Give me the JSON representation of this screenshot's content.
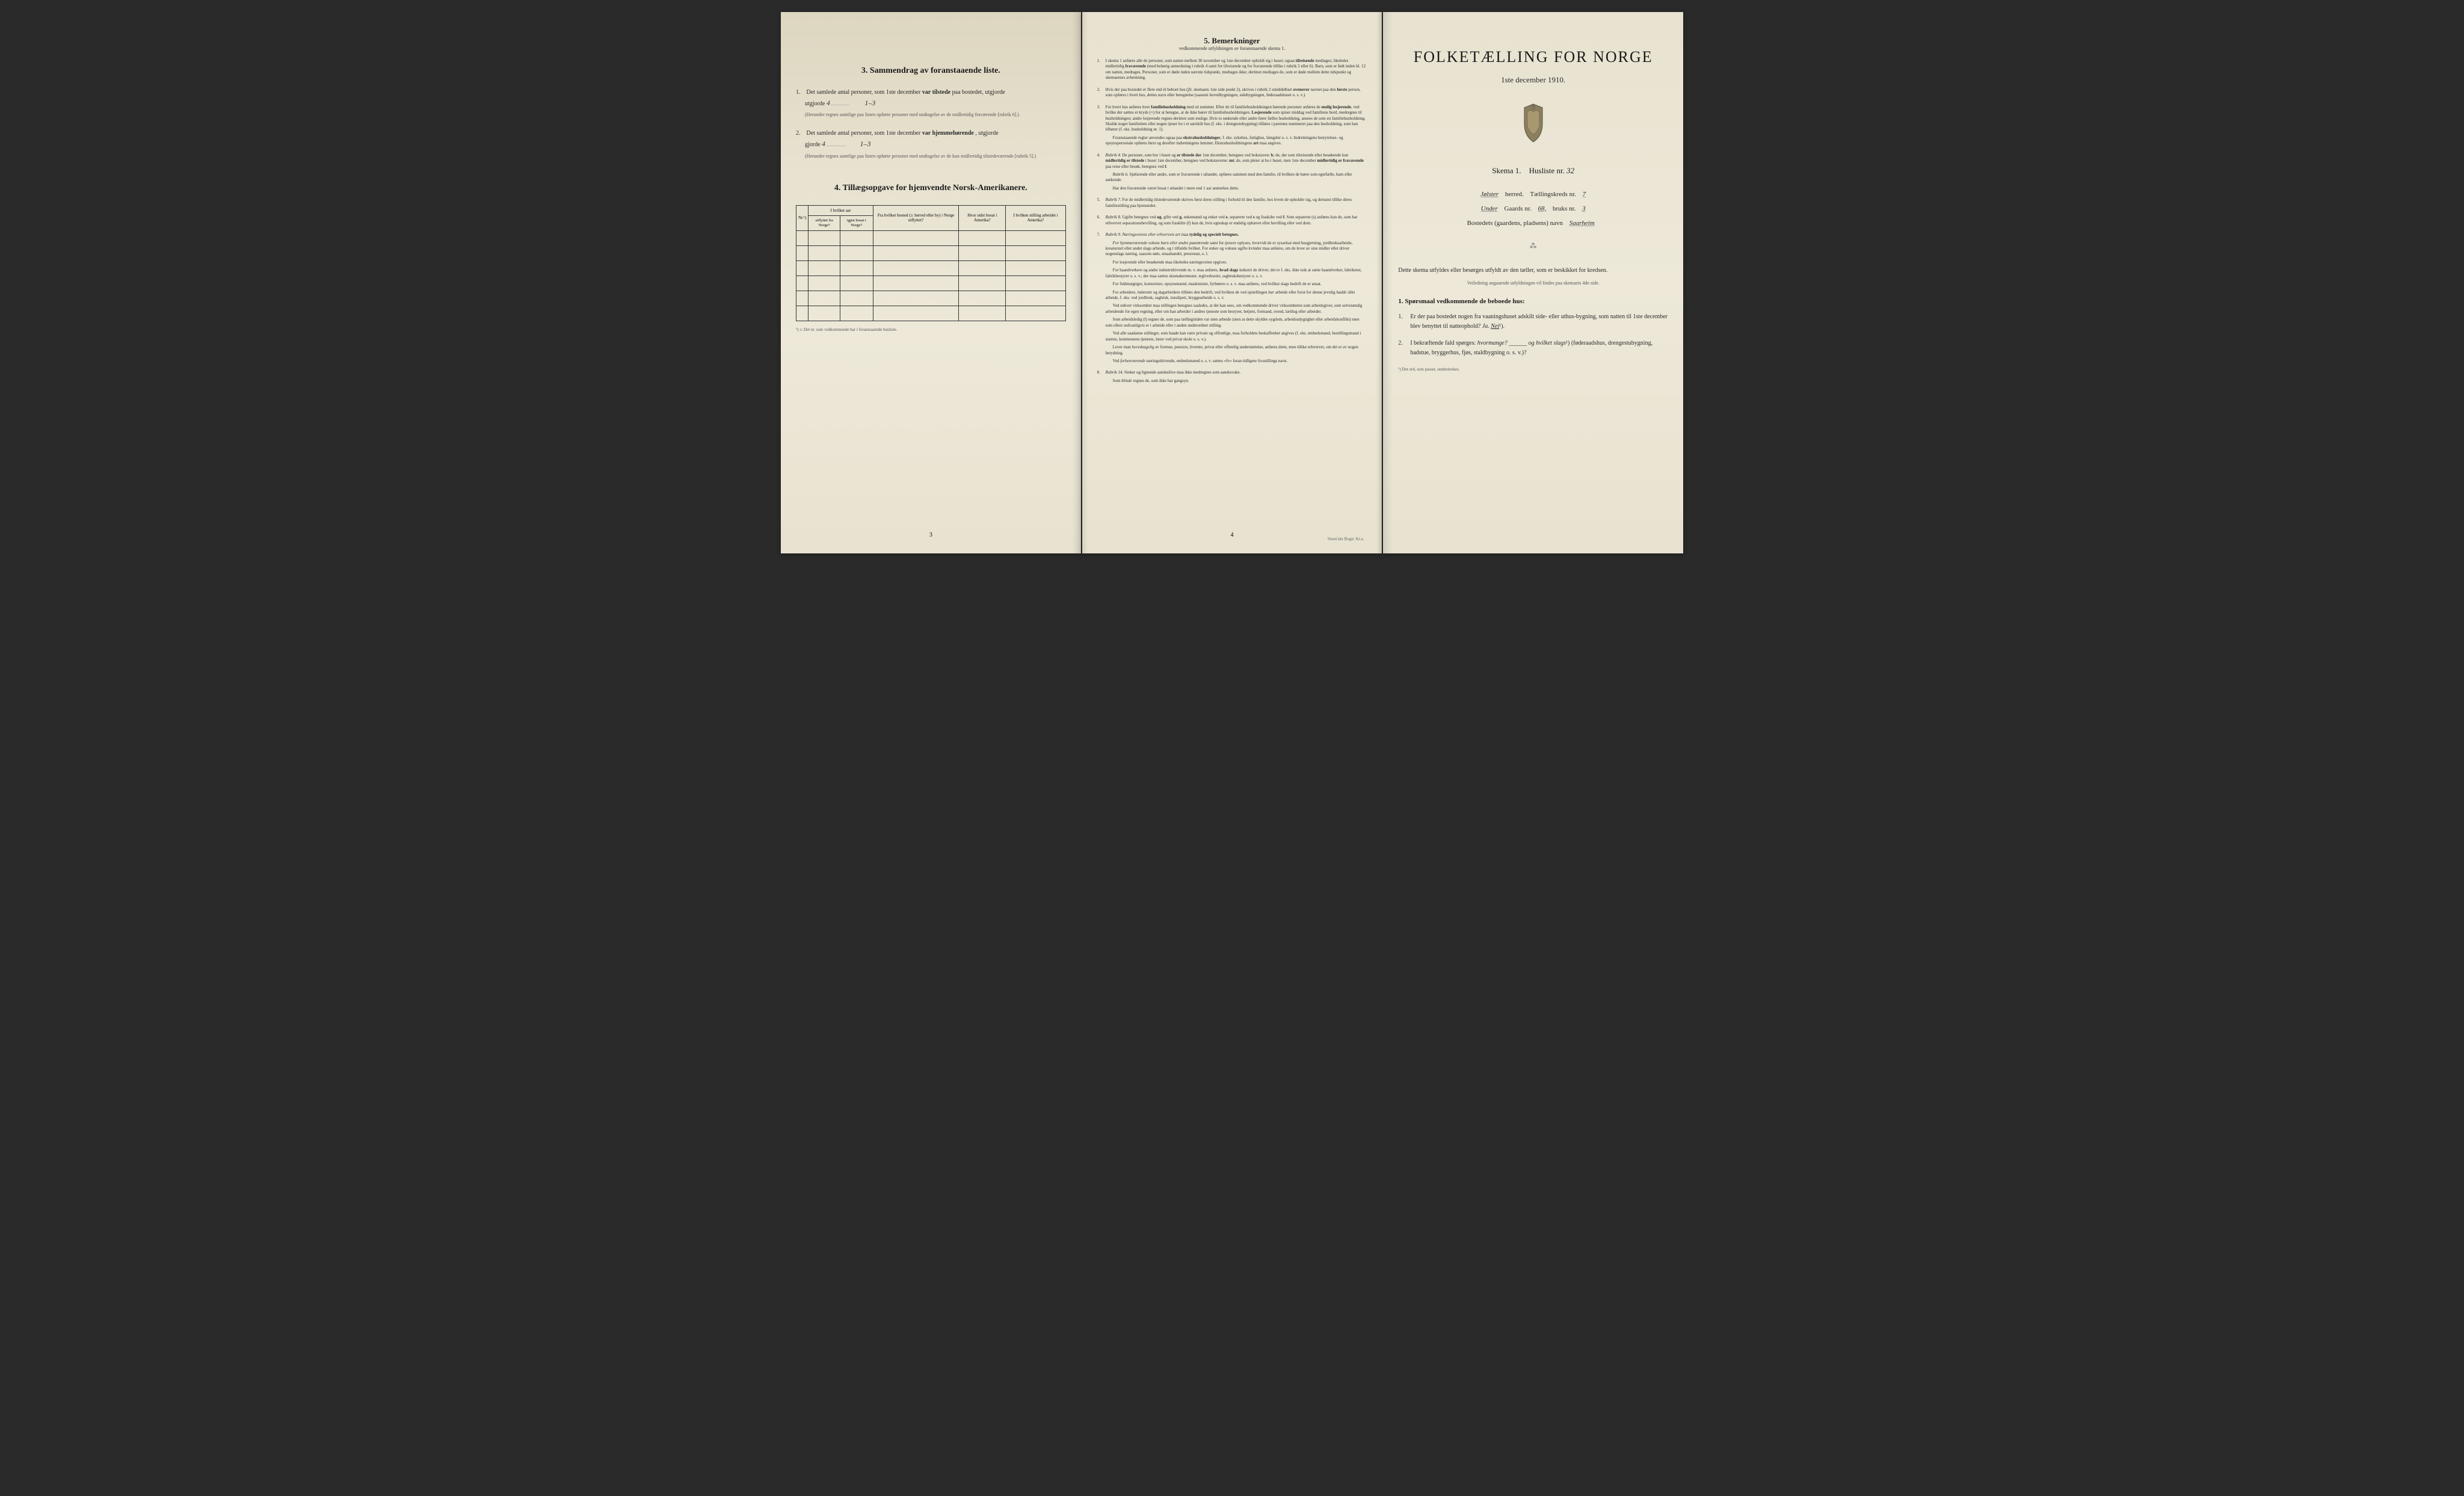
{
  "panel_left": {
    "section3": {
      "heading": "3.   Sammendrag av foranstaaende liste.",
      "item1": {
        "num": "1.",
        "text_before": "Det samlede antal personer, som 1ste december ",
        "bold1": "var tilstede",
        "text_mid": " paa bostedet, utgjorde ",
        "value": "4",
        "handwritten": "1–3",
        "fine_print": "(Herunder regnes samtlige paa listen opførte personer med undtagelse av de midlertidig fraværende [rubrik 6].)"
      },
      "item2": {
        "num": "2.",
        "text_before": "Det samlede antal personer, som 1ste december ",
        "bold1": "var hjemmehørende",
        "text_mid": ", utgjorde ",
        "value": "4",
        "handwritten": "1–3",
        "fine_print": "(Herunder regnes samtlige paa listen opførte personer med undtagelse av de kun midlertidig tilstedeværende [rubrik 5].)"
      }
    },
    "section4": {
      "heading": "4.   Tillægsopgave for hjemvendte Norsk-Amerikanere.",
      "table": {
        "header_row1": {
          "col1": "Nr.¹)",
          "col2": "I hvilket aar",
          "col3": "Fra hvilket bosted (ɔ: herred eller by) i Norge utflyttet?",
          "col4": "Hvor sidst bosat i Amerika?",
          "col5": "I hvilken stilling arbeidet i Amerika?"
        },
        "header_row2": {
          "col2a": "utflyttet fra Norge?",
          "col2b": "igjen bosat i Norge?"
        },
        "empty_rows": 6
      },
      "footnote": "¹) ɔ: Det nr. som vedkommende har i foranstaaende husliste."
    },
    "page_number": "3"
  },
  "panel_middle": {
    "heading": "5.   Bemerkninger",
    "subheading": "vedkommende utfyldningen av foranstaaende skema 1.",
    "remarks": [
      {
        "num": "1.",
        "text": "I skema 1 anføres alle de personer, som natten mellem 30 november og 1ste december opholdt sig i huset; ogsaa <strong>tilreisende</strong> medtages; likeledes midlertidig <strong>fraværende</strong> (med behørig anmerkning i rubrik 4 samt for tilreisende og for fraværende tillike i rubrik 5 eller 6). Barn, som er født inden kl. 12 om natten, medtages. Personer, som er døde inden nævnte tidspunkt, medtages ikke; derimot medtages de, som er døde mellem dette tidspunkt og skemaernes avhentning."
      },
      {
        "num": "2.",
        "text": "Hvis der paa bostedet er flere end ét beboet hus (jfr. skemaets 1ste side punkt 2), skrives i rubrik 2 umiddelbart <strong>ovenover</strong> navnet paa den <strong>første</strong> person, som opføres i hvert hus, dettes navn eller betegnelse (saasom hovedbygningen, sidebygningen, føderaadshuset o. s. v.)."
      },
      {
        "num": "3.",
        "text": "For hvert hus anføres hver <strong>familiehusholdning</strong> med sit nummer. Efter de til familiehusholdningen hørende personer anføres de <strong>enslig losjerende</strong>, ved hvilke der sættes et kryds (×) for at betegne, at de ikke hører til familiehusholdningen. <strong>Losjerende</strong> som spiser middag ved familiens bord, medregnes til husholdningen; andre losjerende regnes derimot som enslige. Hvis to søskende eller andre fører fælles husholdning, ansees de som en familiehusholdning. Skulde noget familielem eller nogen tjener bo i et særskilt hus (f. eks. i drengestubygning) tilføies i parentes nummeret paa den husholdning, som han tilhører (f. eks. husholdning nr. 1).",
        "extra": "Foranstaaende regler anvendes ogsaa paa <strong>ekstrahusholdninger</strong>, f. eks. sykehus, fattighus, fængsler o. s. v. Indretningens bestyrelses- og opsynspersonale opføres først og derefter indretningens lemmer. Ekstrahusholdningens <strong>art</strong> maa angives."
      },
      {
        "num": "4.",
        "text": "<em>Rubrik 4.</em> De personer, som bor i huset og <strong>er tilstede der</strong> 1ste december, betegnes ved bokstaven: <strong>b</strong>; de, der som tilreisende eller besøkende kun <strong>midlertidig er tilstede</strong> i huset 1ste december, betegnes ved bokstaverne: <strong>mt</strong>; de, som pleier at bo i huset, men 1ste december <strong>midlertidig er fraværende</strong> paa reise eller besøk, betegnes ved <strong>f</strong>.",
        "extra": "<em>Rubrik 6.</em> Sjøfarende eller andre, som er fraværende i utlandet, opføres sammen med den familie, til hvilken de hører som egtefælle, barn eller søskende.",
        "extra2": "Har den fraværende været bosat i utlandet i mere end 1 aar anmerkes dette."
      },
      {
        "num": "5.",
        "text": "<em>Rubrik 7.</em> For de midlertidig tilstedeværende skrives først deres stilling i forhold til den familie, hos hvem de opholder sig, og dernæst tillike deres familiestilling paa hjemstedet."
      },
      {
        "num": "6.",
        "text": "<em>Rubrik 8.</em> Ugifte betegnes ved <strong>ug</strong>, gifte ved <strong>g</strong>, enkemænd og enker ved <strong>e</strong>, separerte ved <strong>s</strong> og fraskilte ved <strong>f</strong>. Som separerte (s) anføres kun de, som har erhvervet separationsbevilling, og som fraskilte (f) kun de, hvis egteskap er endelig ophævet efter bevilling eller ved dom."
      },
      {
        "num": "7.",
        "text": "<em>Rubrik 9.</em> <em>Næringsveiens eller erhvervets art</em> maa <strong>tydelig og specielt betegnes.</strong>",
        "extra": "<em>For hjemmeværende voksne barn eller andre paarørende</em> samt for <em>tjenere</em> oplyses, hvorvidt de er sysselsat med husgjerning, jordbruksarbeide, kreaturstel eller andet slags arbeide, og i tilfælde hvilket. For enker og voksne ugifte kvinder maa anføres, om de lever av sine midler eller driver nogenslags næring, saasom søm, smaahandel, pensionat, o. l.",
        "extra2": "For losjerende eller besøkende maa likeledes næringsveien opgives.",
        "extra3": "For haandverkere og andre industridrivende m. v. maa anføres, <strong>hvad slags</strong> industri de driver; det er f. eks. ikke nok at sætte haandverker, fabrikeier, fabrikbestyrer o. s. v.; der maa sættes skomakermester, teglverkseier, sagbruksbestyrer o. s. v.",
        "extra4": "For fuldmægtiger, kontorister, opsynsmænd, maskinister, fyrbøtere o. s. v. maa anføres, ved hvilket slags bedrift de er ansat.",
        "extra5": "For arbeidere, inderster og dagarbeidere tilføies den bedrift, ved hvilken de ved optællingen <em>har</em> arbeide eller forut for denne jevnlig <em>hadde</em> slikt arbeide, f. eks. ved jordbruk, sagbruk, træsliperi, bryggearbeide o. s. v.",
        "extra6": "Ved enhver virksomhet maa stillingen betegnes saaledes, at det kan sees, om vedkommende driver virksomheten som arbeidsgiver, som selvstændig arbeidende for egen regning, eller om han arbeider i andres tjeneste som bestyrer, betjent, formand, svend, lærling eller arbeider.",
        "extra7": "Som arbeidsledig (l) regnes de, som paa tællingstiden var uten arbeide (uten at dette skyldes sygdom, arbeidsudygtighet eller arbeidskonflikt) men som ellers sedvanligvis er i arbeide eller i anden underordnet stilling.",
        "extra8": "Ved alle saadanne stillinger, som baade kan være private og offentlige, maa forholdets beskaffenhet angives (f. eks. embedsmand, bestillingsmand i statens, kommunens tjeneste, lærer ved privat skole o. s. v.).",
        "extra9": "Lever man <em>hovedsagelig</em> av formue, pension, livrente, privat eller offentlig understøttelse, anføres dette, men tillike erhvervet, om det er av nogen betydning.",
        "extra10": "Ved <em>forhenværende</em> næringsdrivende, embedsmænd o. s. v. sættes «fv» foran tidligere livsstillings navn."
      },
      {
        "num": "8.",
        "text": "<em>Rubrik 14.</em> Sinker og lignende aandsslöve maa ikke medregnes som aandssvake.",
        "extra": "Som <em>blinde</em> regnes de, som ikke har gangsyn."
      }
    ],
    "page_number": "4",
    "publisher": "Steen'ske Bogtr. Kr.a."
  },
  "panel_right": {
    "title": "FOLKETÆLLING FOR NORGE",
    "date": "1ste december 1910.",
    "skema_line": {
      "label1": "Skema 1.",
      "label2": "Husliste nr.",
      "value": "32"
    },
    "line1": {
      "hw1": "Jølster",
      "label1": "herred.",
      "label2": "Tællingskreds nr.",
      "hw2": "7"
    },
    "line2": {
      "hw1": "Under",
      "label1": "Gaards nr.",
      "hw2": "68,",
      "label2": "bruks nr.",
      "hw3": "3"
    },
    "line3": {
      "label": "Bostedets (gaardens, pladsens) navn",
      "hw": "Saarheim"
    },
    "instructions": "Dette skema utfyldes eller besørges utfyldt av den tæller, som er beskikket for kredsen.",
    "instructions_small": "Veiledning angaaende utfyldningen vil findes paa skemaets 4de side.",
    "question_heading": "1. Spørsmaal vedkommende de beboede hus:",
    "questions": [
      {
        "num": "1.",
        "text": "Er der paa bostedet nogen fra vaaningshuset adskilt side- eller uthus-bygning, som natten til 1ste december blev benyttet til natteophold?   <em>Ja.   <span class='underlined'>Nei</span></em>¹)."
      },
      {
        "num": "2.",
        "text": "I bekræftende fald spørges: <em>hvormange?</em> ______ <em>og hvilket slags</em>¹) (føderaadshus, drengestubygning, badstue, bryggerhus, fjøs, staldbygning o. s. v.)?"
      }
    ],
    "footnote": "¹) Det ord, som passer, understrekes."
  }
}
